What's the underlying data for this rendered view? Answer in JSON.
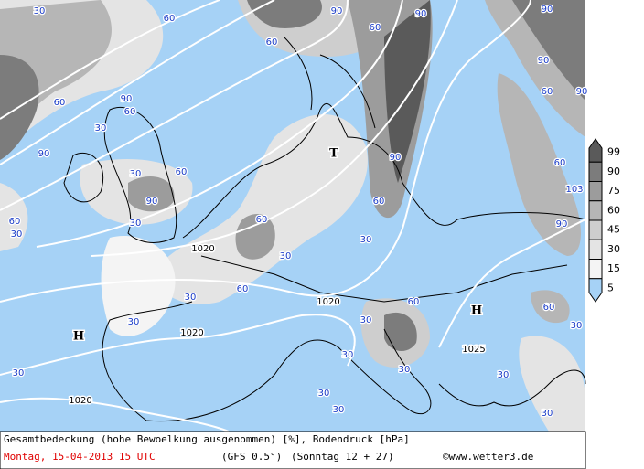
{
  "map": {
    "labels": [
      "30",
      "60",
      "90",
      "90",
      "60",
      "90",
      "60",
      "90",
      "60",
      "90",
      "60",
      "90",
      "60",
      "90",
      "30",
      "30",
      "60",
      "90",
      "30",
      "30",
      "60",
      "60",
      "30",
      "60",
      "30",
      "30",
      "30",
      "60",
      "90",
      "60",
      "103",
      "90",
      "60",
      "30",
      "30",
      "30",
      "30",
      "30",
      "30",
      "30",
      "60",
      "30",
      "30"
    ],
    "isobar_labels": [
      "1020",
      "1020",
      "1020",
      "1020",
      "1025"
    ],
    "pressure_centers": [
      "H",
      "H",
      "T"
    ]
  },
  "legend": {
    "ticks": [
      99,
      90,
      75,
      60,
      45,
      30,
      15,
      5
    ],
    "colors": [
      "#5a5a5a",
      "#7c7c7c",
      "#9c9c9c",
      "#b6b6b6",
      "#cecece",
      "#e4e4e4",
      "#f4f4f4",
      "#a6d2f6"
    ]
  },
  "footer": {
    "description": "Gesamtbedeckung (hohe Bewoelkung ausgenommen) [%], Bodendruck [hPa]",
    "date": "Montag, 15-04-2013  15 UTC",
    "model": "(GFS 0.5°)",
    "run": "(Sonntag 12 + 27)",
    "copyright": "©www.wetter3.de"
  }
}
